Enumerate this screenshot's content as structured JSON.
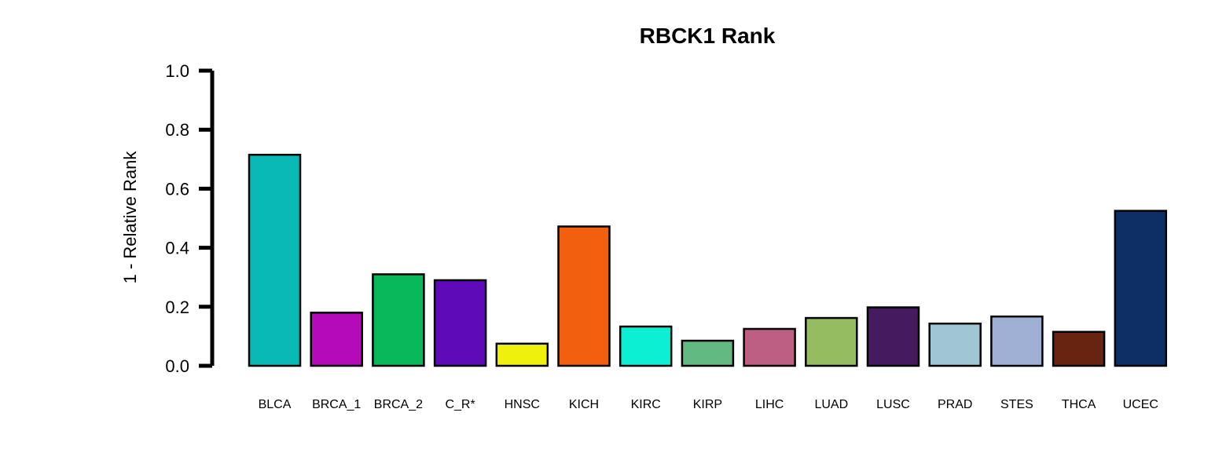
{
  "chart_data": {
    "type": "bar",
    "title": "RBCK1 Rank",
    "ylabel": "1 - Relative Rank",
    "xlabel": "",
    "ylim": [
      0,
      1
    ],
    "yticks": [
      "0.0",
      "0.2",
      "0.4",
      "0.6",
      "0.8",
      "1.0"
    ],
    "grid": false,
    "legend": "none",
    "categories": [
      "BLCA",
      "BRCA_1",
      "BRCA_2",
      "C_R*",
      "HNSC",
      "KICH",
      "KIRC",
      "KIRP",
      "LIHC",
      "LUAD",
      "LUSC",
      "PRAD",
      "STES",
      "THCA",
      "UCEC"
    ],
    "values": [
      0.715,
      0.18,
      0.31,
      0.29,
      0.075,
      0.472,
      0.133,
      0.085,
      0.125,
      0.162,
      0.198,
      0.143,
      0.167,
      0.115,
      0.525
    ],
    "colors": [
      "#08B9B5",
      "#B40AB9",
      "#08B85A",
      "#5E0AB9",
      "#EFF00C",
      "#F15F0F",
      "#0DEFD2",
      "#63BA80",
      "#BD5F82",
      "#96BC61",
      "#461A5F",
      "#A1C6D3",
      "#A0AFD4",
      "#682410",
      "#0D2F66"
    ]
  }
}
